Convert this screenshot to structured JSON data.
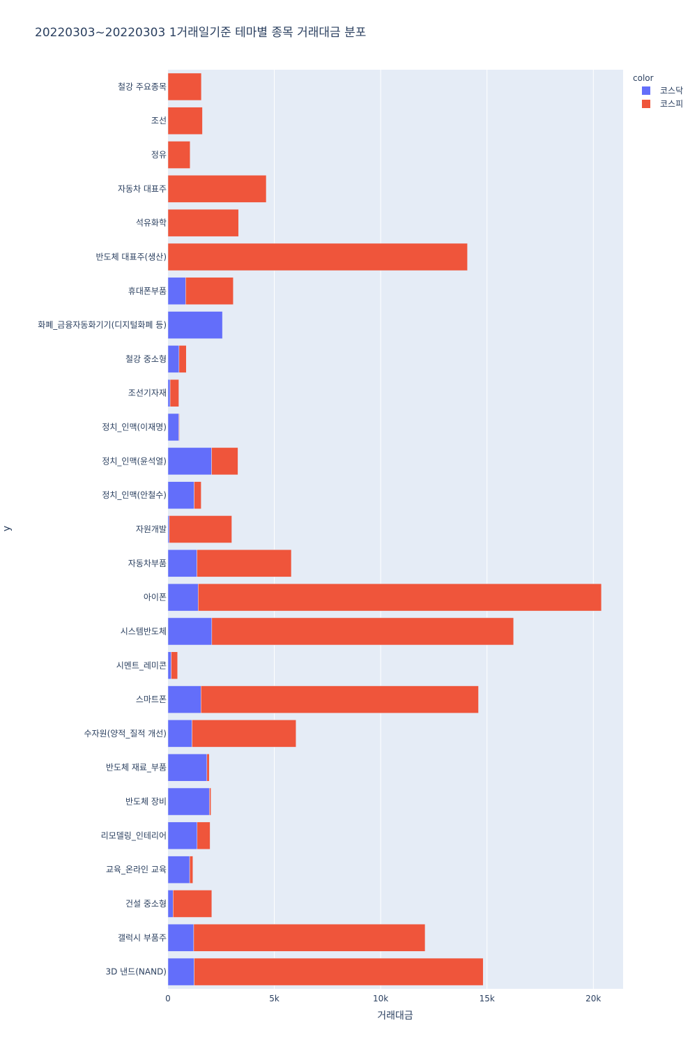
{
  "chart_data": {
    "type": "bar",
    "orientation": "horizontal",
    "barmode": "stack",
    "title": "20220303~20220303 1거래일기준 테마별 종목 거래대금 분포",
    "xlabel": "거래대금",
    "ylabel": "y",
    "xlim": [
      0,
      21400
    ],
    "xticks": [
      0,
      5000,
      10000,
      15000,
      20000
    ],
    "xtick_labels": [
      "0",
      "5k",
      "10k",
      "15k",
      "20k"
    ],
    "grid": true,
    "legend_title": "color",
    "legend_position": "top-right",
    "categories": [
      "철강 주요종목",
      "조선",
      "정유",
      "자동차 대표주",
      "석유화학",
      "반도체 대표주(생산)",
      "휴대폰부품",
      "화폐_금융자동화기기(디지털화폐 등)",
      "철강 중소형",
      "조선기자재",
      "정치_인맥(이재명)",
      "정치_인맥(윤석열)",
      "정치_인맥(안철수)",
      "자원개발",
      "자동차부품",
      "아이폰",
      "시스템반도체",
      "시멘트_레미콘",
      "스마트폰",
      "수자원(양적_질적 개선)",
      "반도체 재료_부품",
      "반도체 장비",
      "리모델링_인테리어",
      "교육_온라인 교육",
      "건설 중소형",
      "갤럭시 부품주",
      "3D 낸드(NAND)"
    ],
    "series": [
      {
        "name": "코스닥",
        "color": "#636efa",
        "values": [
          0,
          0,
          0,
          0,
          0,
          0,
          830,
          2560,
          520,
          100,
          510,
          2050,
          1230,
          60,
          1360,
          1420,
          2060,
          150,
          1550,
          1130,
          1830,
          1950,
          1370,
          1020,
          240,
          1210,
          1230
        ]
      },
      {
        "name": "코스피",
        "color": "#ef553b",
        "values": [
          1570,
          1620,
          1040,
          4620,
          3320,
          14080,
          2240,
          0,
          340,
          410,
          30,
          1240,
          330,
          2940,
          4440,
          18960,
          14190,
          300,
          13050,
          4890,
          110,
          70,
          610,
          150,
          1820,
          10880,
          13590
        ]
      }
    ]
  }
}
